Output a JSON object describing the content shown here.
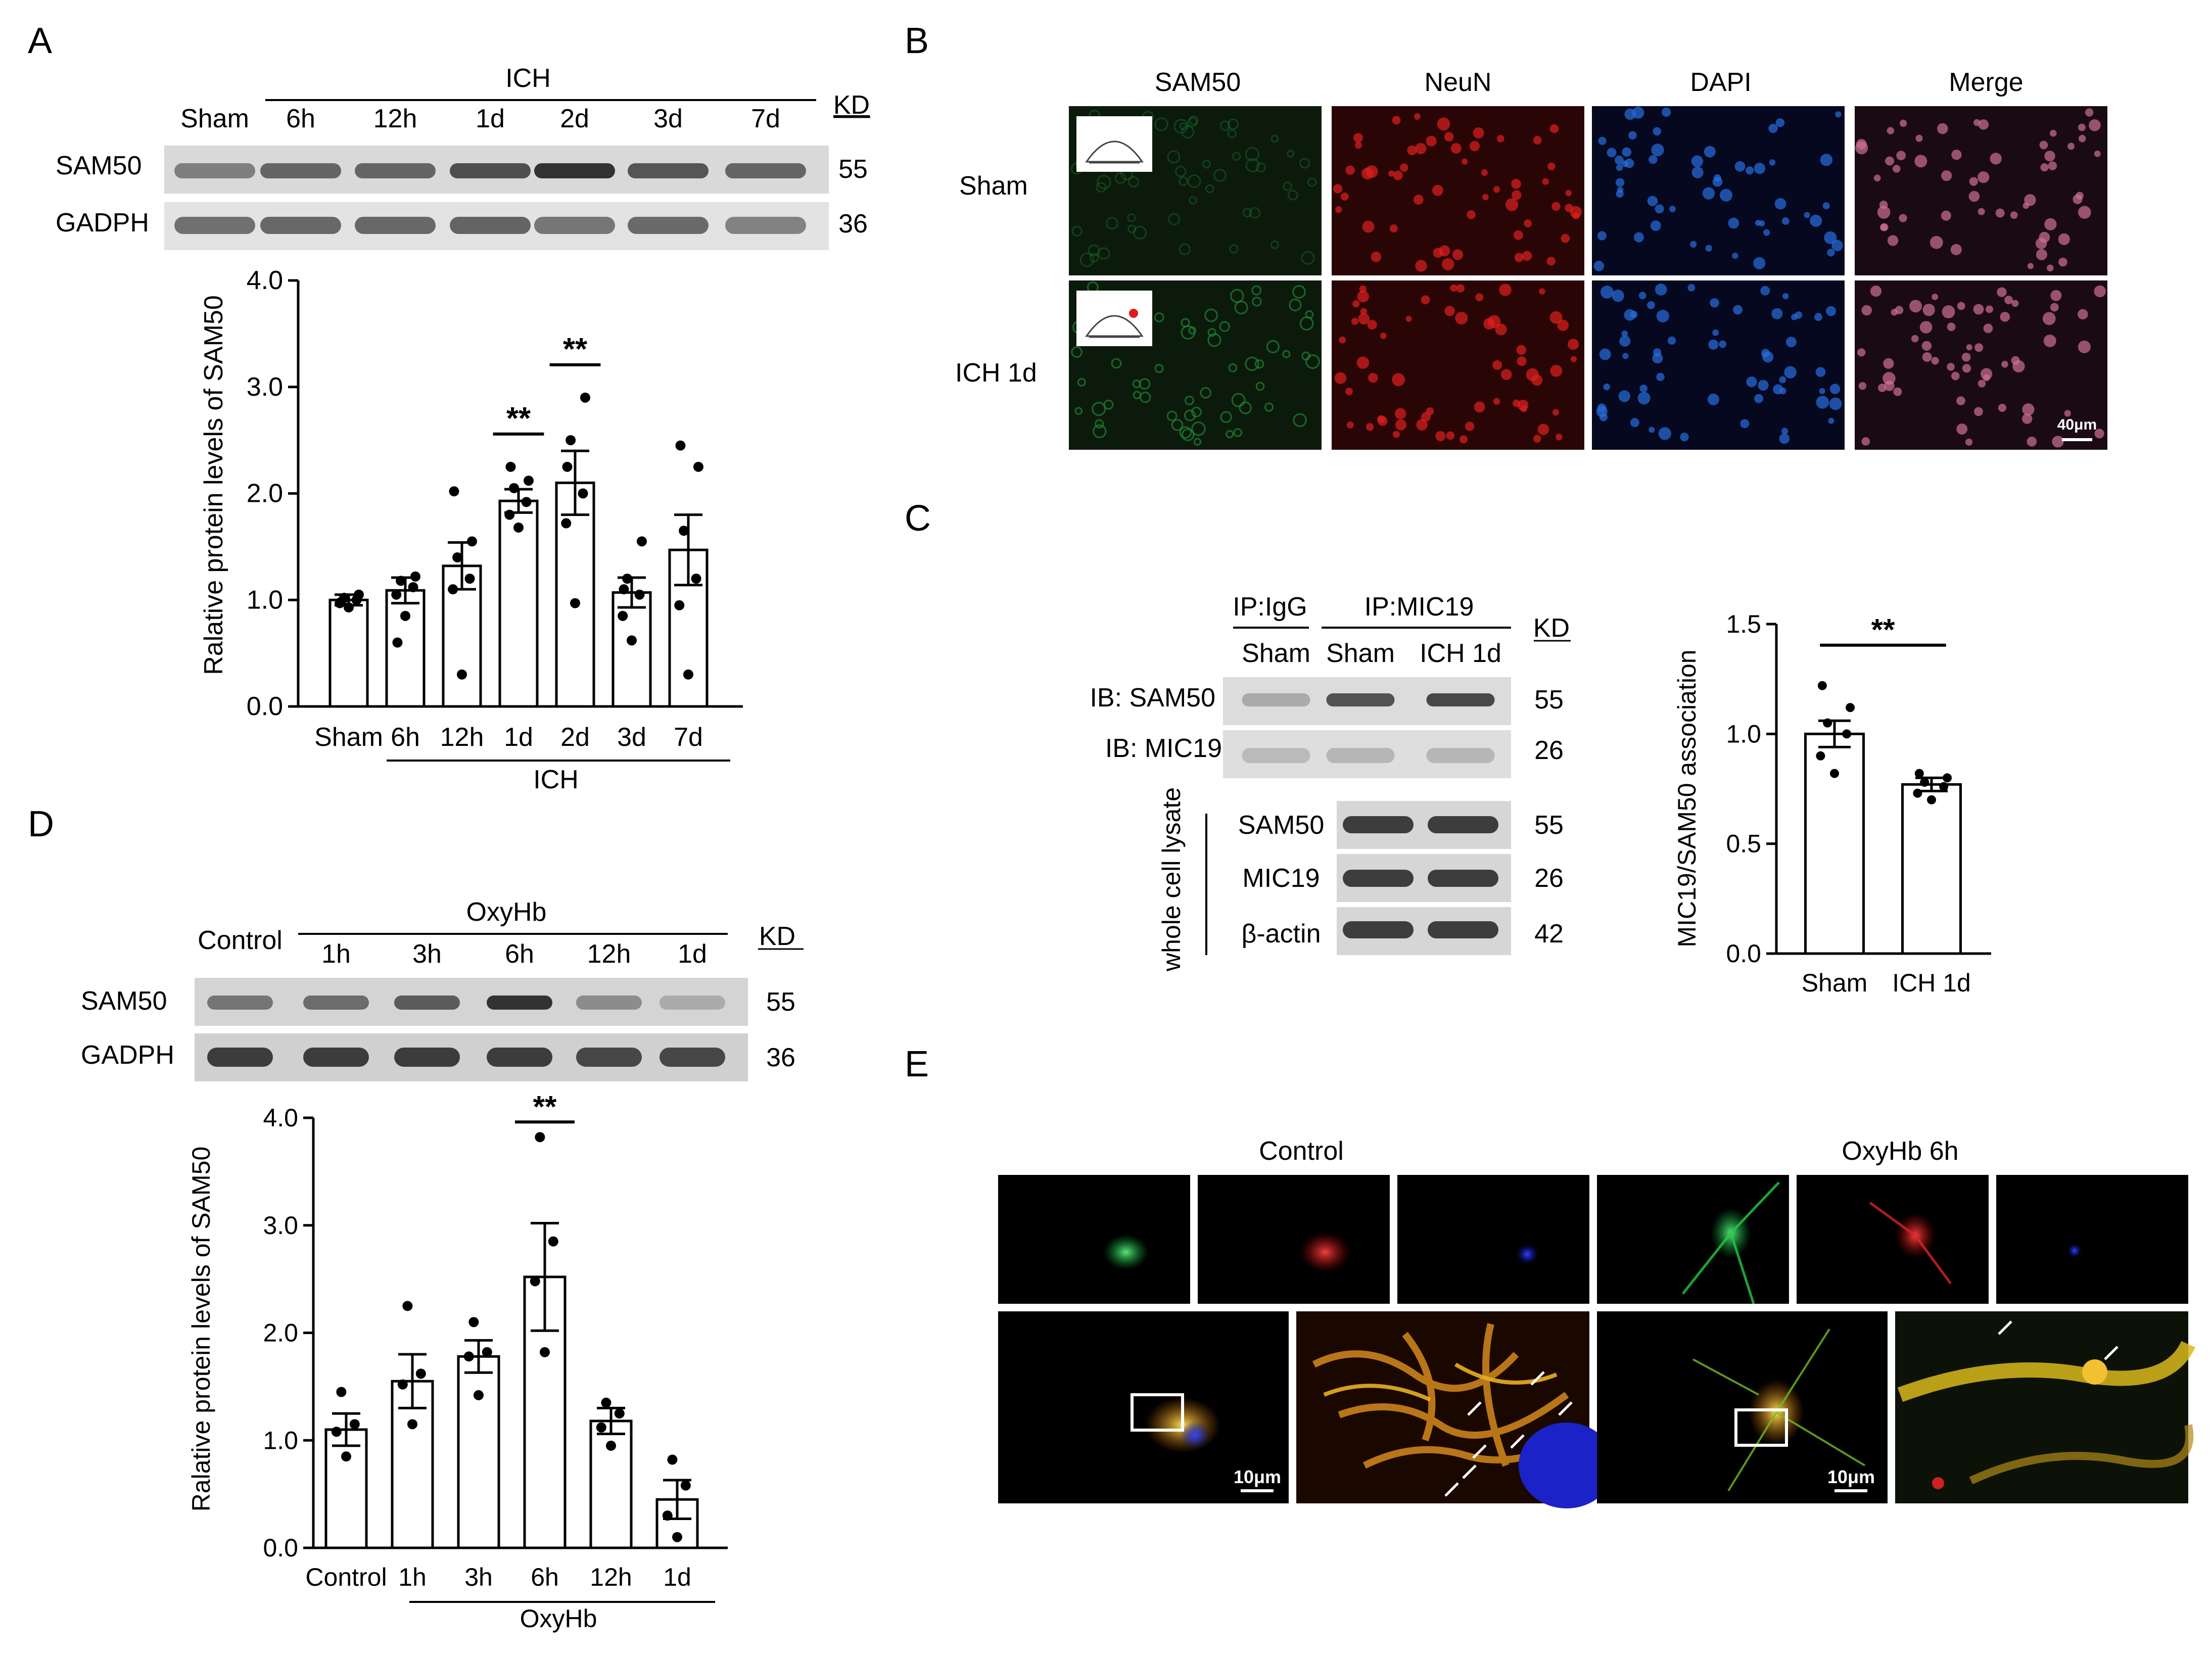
{
  "panel_A": {
    "letter": "A",
    "group_label": "ICH",
    "lanes": [
      "Sham",
      "6h",
      "12h",
      "1d",
      "2d",
      "3d",
      "7d"
    ],
    "kd_header": "KD",
    "blots": [
      {
        "protein": "SAM50",
        "kd": "55",
        "intensity": [
          0.55,
          0.7,
          0.7,
          0.82,
          0.95,
          0.78,
          0.7
        ]
      },
      {
        "protein": "GADPH",
        "kd": "36",
        "intensity": [
          0.65,
          0.7,
          0.7,
          0.72,
          0.62,
          0.68,
          0.55
        ]
      }
    ]
  },
  "panel_B": {
    "letter": "B",
    "columns": [
      "SAM50",
      "NeuN",
      "DAPI",
      "Merge"
    ],
    "rows": [
      "Sham",
      "ICH 1d"
    ],
    "channel_colors": [
      "#1faa3c",
      "#e01a1a",
      "#2a6de0",
      "#c0506e"
    ],
    "scale_bar": "40μm"
  },
  "panel_C": {
    "letter": "C",
    "ip_labels": [
      "IP:IgG",
      "IP:MIC19"
    ],
    "lanes": [
      "Sham",
      "Sham",
      "ICH 1d"
    ],
    "kd_header": "KD",
    "ib_rows": [
      {
        "label": "IB: SAM50",
        "kd": "55",
        "intensity": [
          0.25,
          0.8,
          0.85
        ]
      },
      {
        "label": "IB: MIC19",
        "kd": "26",
        "intensity": [
          0.12,
          0.15,
          0.15
        ]
      }
    ],
    "lysate_label": "whole cell lysate",
    "lysate_rows": [
      {
        "label": "SAM50",
        "kd": "55"
      },
      {
        "label": "MIC19",
        "kd": "26"
      },
      {
        "label": "β-actin",
        "kd": "42"
      }
    ]
  },
  "panel_D": {
    "letter": "D",
    "group_label": "OxyHb",
    "control_label": "Control",
    "lanes": [
      "1h",
      "3h",
      "6h",
      "12h",
      "1d"
    ],
    "kd_header": "KD",
    "blots": [
      {
        "protein": "SAM50",
        "kd": "55",
        "intensity": [
          0.6,
          0.65,
          0.75,
          0.95,
          0.45,
          0.2
        ]
      },
      {
        "protein": "GADPH",
        "kd": "36",
        "intensity": [
          0.9,
          0.9,
          0.9,
          0.9,
          0.85,
          0.85
        ]
      }
    ]
  },
  "panel_E": {
    "letter": "E",
    "groups": [
      "Control",
      "OxyHb 6h"
    ],
    "scale_bar": "10μm"
  },
  "chart_data": [
    {
      "id": "A",
      "type": "bar",
      "categories": [
        "Sham",
        "6h",
        "12h",
        "1d",
        "2d",
        "3d",
        "7d"
      ],
      "group_label": "ICH",
      "values": [
        1.0,
        1.09,
        1.32,
        1.93,
        2.1,
        1.07,
        1.47
      ],
      "errors": [
        0.05,
        0.12,
        0.22,
        0.11,
        0.3,
        0.14,
        0.33
      ],
      "points": [
        [
          0.93,
          0.97,
          1.0,
          1.02,
          1.05,
          0.98
        ],
        [
          0.85,
          1.05,
          1.12,
          1.18,
          1.22,
          0.6
        ],
        [
          0.3,
          1.1,
          1.2,
          1.4,
          1.55,
          2.02
        ],
        [
          1.68,
          1.8,
          1.92,
          2.05,
          2.12,
          2.25
        ],
        [
          0.97,
          1.72,
          2.0,
          2.5,
          2.9,
          2.25
        ],
        [
          0.62,
          0.85,
          1.05,
          1.2,
          1.55,
          1.1
        ],
        [
          0.3,
          0.95,
          1.2,
          1.65,
          2.25,
          2.45
        ]
      ],
      "significance": [
        {
          "category": "1d",
          "label": "**"
        },
        {
          "category": "2d",
          "label": "**"
        }
      ],
      "ylabel": "Ralative protein levels of SAM50",
      "ylim": [
        0,
        4
      ],
      "yticks": [
        "0.0",
        "1.0",
        "2.0",
        "3.0",
        "4.0"
      ]
    },
    {
      "id": "C",
      "type": "bar",
      "categories": [
        "Sham",
        "ICH 1d"
      ],
      "values": [
        1.0,
        0.77
      ],
      "errors": [
        0.06,
        0.03
      ],
      "points": [
        [
          0.82,
          0.9,
          1.0,
          1.05,
          1.12,
          1.22
        ],
        [
          0.7,
          0.73,
          0.76,
          0.78,
          0.8,
          0.82
        ]
      ],
      "significance": [
        {
          "label": "**"
        }
      ],
      "ylabel": "MIC19/SAM50 association",
      "ylim": [
        0,
        1.5
      ],
      "yticks": [
        "0.0",
        "0.5",
        "1.0",
        "1.5"
      ]
    },
    {
      "id": "D",
      "type": "bar",
      "categories": [
        "Control",
        "1h",
        "3h",
        "6h",
        "12h",
        "1d"
      ],
      "group_label": "OxyHb",
      "values": [
        1.1,
        1.55,
        1.78,
        2.52,
        1.18,
        0.45
      ],
      "errors": [
        0.15,
        0.25,
        0.15,
        0.5,
        0.12,
        0.18
      ],
      "points": [
        [
          0.85,
          1.08,
          1.15,
          1.45
        ],
        [
          1.15,
          1.52,
          1.62,
          2.25
        ],
        [
          1.42,
          1.78,
          1.82,
          2.1
        ],
        [
          1.82,
          2.48,
          2.85,
          3.82
        ],
        [
          0.95,
          1.12,
          1.25,
          1.35
        ],
        [
          0.1,
          0.3,
          0.58,
          0.82
        ]
      ],
      "significance": [
        {
          "category": "6h",
          "label": "**"
        }
      ],
      "ylabel": "Ralative protein levels of SAM50",
      "ylim": [
        0,
        4
      ],
      "yticks": [
        "0.0",
        "1.0",
        "2.0",
        "3.0",
        "4.0"
      ]
    }
  ]
}
